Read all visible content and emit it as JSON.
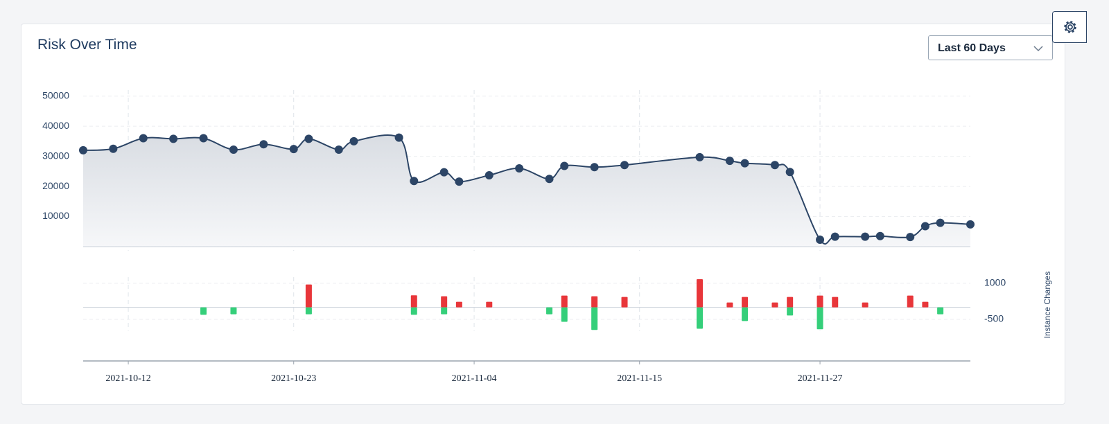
{
  "controls": {
    "range": "Last 60 Days"
  },
  "chart_data": [
    {
      "type": "line",
      "title": "Risk Over Time",
      "color": "#2c4566",
      "x": [
        "2021-10-09",
        "2021-10-11",
        "2021-10-13",
        "2021-10-15",
        "2021-10-17",
        "2021-10-19",
        "2021-10-21",
        "2021-10-23",
        "2021-10-24",
        "2021-10-26",
        "2021-10-27",
        "2021-10-30",
        "2021-10-31",
        "2021-11-02",
        "2021-11-03",
        "2021-11-05",
        "2021-11-07",
        "2021-11-09",
        "2021-11-10",
        "2021-11-12",
        "2021-11-14",
        "2021-11-19",
        "2021-11-21",
        "2021-11-22",
        "2021-11-24",
        "2021-11-25",
        "2021-11-27",
        "2021-11-28",
        "2021-11-30",
        "2021-12-01",
        "2021-12-03",
        "2021-12-04",
        "2021-12-05",
        "2021-12-07"
      ],
      "values": [
        32000,
        32500,
        36000,
        35800,
        36000,
        32200,
        34000,
        32400,
        35800,
        32200,
        35000,
        36200,
        21800,
        24700,
        21600,
        23700,
        26000,
        22500,
        26800,
        26400,
        27100,
        29700,
        28500,
        27700,
        27100,
        24800,
        2300,
        3300,
        3300,
        3500,
        3200,
        6800,
        7900,
        7400
      ],
      "xlim": [
        "2021-10-09",
        "2021-12-07"
      ],
      "ylim": [
        0,
        52000
      ],
      "yticks": [
        10000,
        20000,
        30000,
        40000,
        50000
      ],
      "grid": true
    },
    {
      "type": "bar",
      "y_label": "Instance Changes",
      "yaxis_position": "right",
      "x": [
        "2021-10-17",
        "2021-10-19",
        "2021-10-24",
        "2021-10-31",
        "2021-11-02",
        "2021-11-03",
        "2021-11-05",
        "2021-11-09",
        "2021-11-10",
        "2021-11-12",
        "2021-11-14",
        "2021-11-19",
        "2021-11-21",
        "2021-11-22",
        "2021-11-24",
        "2021-11-25",
        "2021-11-27",
        "2021-11-28",
        "2021-11-30",
        "2021-12-03",
        "2021-12-04",
        "2021-12-05"
      ],
      "series": [
        {
          "color": "#e8363a",
          "values": [
            null,
            null,
            950,
            500,
            460,
            230,
            230,
            null,
            490,
            460,
            430,
            1170,
            200,
            430,
            200,
            430,
            490,
            430,
            200,
            490,
            230,
            null
          ]
        },
        {
          "color": "#35cf7a",
          "values": [
            -310,
            -290,
            -290,
            -310,
            -290,
            null,
            null,
            -290,
            -600,
            -940,
            null,
            -890,
            null,
            -570,
            null,
            -340,
            -910,
            null,
            null,
            null,
            null,
            -290
          ]
        }
      ],
      "xlim": [
        "2021-10-09",
        "2021-12-07"
      ],
      "ylim": [
        -2200,
        1400
      ],
      "xticks": [
        "2021-10-12",
        "2021-10-23",
        "2021-11-04",
        "2021-11-15",
        "2021-11-27"
      ],
      "yticks": [
        1000,
        -500
      ],
      "grid": true
    }
  ]
}
